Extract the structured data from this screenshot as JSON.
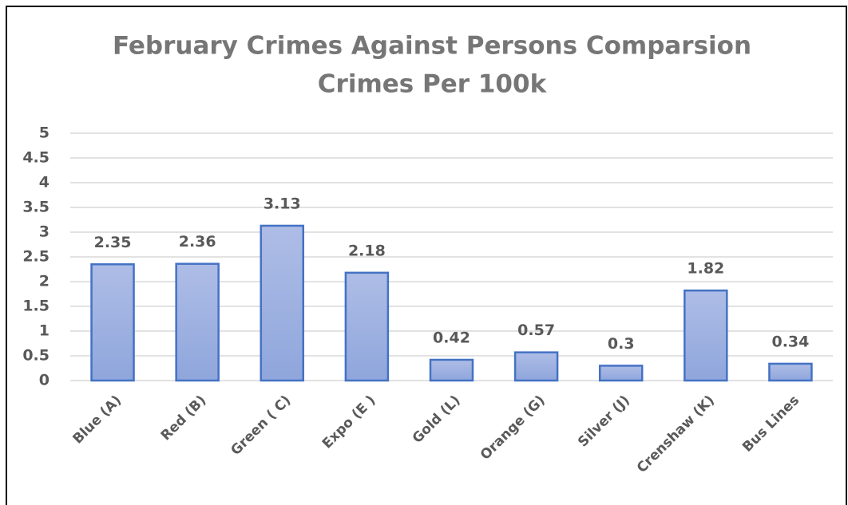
{
  "chart_data": {
    "type": "bar",
    "title": "February Crimes Against Persons Comparsion",
    "subtitle": "Crimes Per 100k",
    "categories": [
      "Blue (A)",
      "Red (B)",
      "Green ( C)",
      "Expo (E )",
      "Gold (L)",
      "Orange (G)",
      "Silver  (J)",
      "Crenshaw (K)",
      "Bus Lines"
    ],
    "values": [
      2.35,
      2.36,
      3.13,
      2.18,
      0.42,
      0.57,
      0.3,
      1.82,
      0.34
    ],
    "color": "#4472c4",
    "ylim": [
      0,
      5
    ],
    "yticks": [
      0,
      0.5,
      1,
      1.5,
      2,
      2.5,
      3,
      3.5,
      4,
      4.5,
      5
    ],
    "grid": true
  }
}
